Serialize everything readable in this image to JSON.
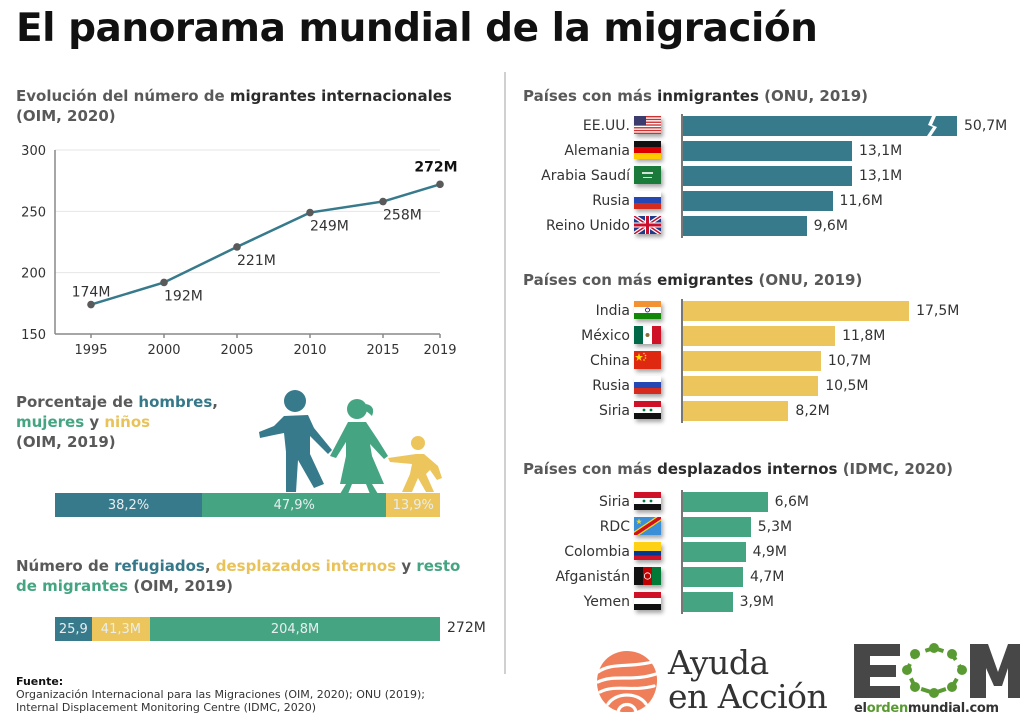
{
  "title": "El panorama mundial de la migración",
  "line_section": {
    "title_pre": "Evolución del número de ",
    "title_hl": "migrantes internacionales",
    "title_post": "(OIM, 2020)"
  },
  "gender_section": {
    "title_pre": "Porcentaje de ",
    "w_hombres": "hombres",
    "comma": ",",
    "w_mujeres": "mujeres",
    "y": " y ",
    "w_ninos": "niños",
    "source": "(OIM, 2019)"
  },
  "refugees_section": {
    "t1": "Número de ",
    "w_refugiados": "refugiados",
    "comma": ", ",
    "w_desplazados": "desplazados internos",
    "y": " y ",
    "w_resto1": "resto",
    "w_resto2": "de migrantes",
    "source": " (OIM, 2019)"
  },
  "immigrants_section": {
    "title_pre": "Países con más ",
    "title_hl": "inmigrantes",
    "title_post": " (ONU, 2019)"
  },
  "emigrants_section": {
    "title_pre": "Países con más ",
    "title_hl": "emigrantes",
    "title_post": " (ONU, 2019)"
  },
  "idp_section": {
    "title_pre": "Países con más ",
    "title_hl": "desplazados internos",
    "title_post": " (IDMC, 2020)"
  },
  "footer": {
    "fuente_label": "Fuente:",
    "line1": "Organización Internacional para las Migraciones (OIM, 2020); ONU (2019);",
    "line2": "Internal Displacement Monitoring Centre (IDMC, 2020)"
  },
  "logos": {
    "aea_line1": "Ayuda",
    "aea_line2": "en Acción",
    "eom_text": "EOM",
    "eom_url_a": "el",
    "eom_url_b": "orden",
    "eom_url_c": "mundial.com"
  },
  "colors": {
    "blue": "#367a8c",
    "green": "#45a582",
    "yellow": "#ecc55c",
    "dot": "#5a5a5a"
  },
  "chart_data": [
    {
      "id": "migrants_evolution",
      "type": "line",
      "title": "Evolución del número de migrantes internacionales (OIM, 2020)",
      "x": [
        "1995",
        "2000",
        "2005",
        "2010",
        "2015",
        "2019"
      ],
      "values": [
        174,
        192,
        221,
        249,
        258,
        272
      ],
      "labels": [
        "174M",
        "192M",
        "221M",
        "249M",
        "258M",
        "272M"
      ],
      "yticks": [
        "150",
        "200",
        "250",
        "300"
      ],
      "ylim": [
        150,
        300
      ],
      "grid": true,
      "xlabel": "",
      "ylabel": ""
    },
    {
      "id": "gender_split",
      "type": "bar",
      "stacked": true,
      "title": "Porcentaje de hombres, mujeres y niños (OIM, 2019)",
      "categories": [
        "hombres",
        "mujeres",
        "niños"
      ],
      "values": [
        38.2,
        47.9,
        13.9
      ],
      "labels": [
        "38,2%",
        "47,9%",
        "13,9%"
      ]
    },
    {
      "id": "refugees_split",
      "type": "bar",
      "stacked": true,
      "title": "Número de refugiados, desplazados internos y resto de migrantes (OIM, 2019)",
      "categories": [
        "refugiados",
        "desplazados internos",
        "resto de migrantes"
      ],
      "values": [
        25.9,
        41.3,
        204.8
      ],
      "labels": [
        "25,9",
        "41,3M",
        "204,8M"
      ],
      "total_label": "272M"
    },
    {
      "id": "immigrants",
      "type": "bar",
      "orientation": "horizontal",
      "title": "Países con más inmigrantes (ONU, 2019)",
      "categories": [
        "EE.UU.",
        "Alemania",
        "Arabia Saudí",
        "Rusia",
        "Reino Unido"
      ],
      "flags": [
        "us",
        "de",
        "sa",
        "ru",
        "gb"
      ],
      "values": [
        50.7,
        13.1,
        13.1,
        11.6,
        9.6
      ],
      "labels": [
        "50,7M",
        "13,1M",
        "13,1M",
        "11,6M",
        "9,6M"
      ],
      "axis_break_on_first": true
    },
    {
      "id": "emigrants",
      "type": "bar",
      "orientation": "horizontal",
      "title": "Países con más emigrantes (ONU, 2019)",
      "categories": [
        "India",
        "México",
        "China",
        "Rusia",
        "Siria"
      ],
      "flags": [
        "in",
        "mx",
        "cn",
        "ru",
        "sy"
      ],
      "values": [
        17.5,
        11.8,
        10.7,
        10.5,
        8.2
      ],
      "labels": [
        "17,5M",
        "11,8M",
        "10,7M",
        "10,5M",
        "8,2M"
      ]
    },
    {
      "id": "idp",
      "type": "bar",
      "orientation": "horizontal",
      "title": "Países con más desplazados internos (IDMC, 2020)",
      "categories": [
        "Siria",
        "RDC",
        "Colombia",
        "Afganistán",
        "Yemen"
      ],
      "flags": [
        "sy",
        "cd",
        "co",
        "af",
        "ye"
      ],
      "values": [
        6.6,
        5.3,
        4.9,
        4.7,
        3.9
      ],
      "labels": [
        "6,6M",
        "5,3M",
        "4,9M",
        "4,7M",
        "3,9M"
      ]
    }
  ]
}
